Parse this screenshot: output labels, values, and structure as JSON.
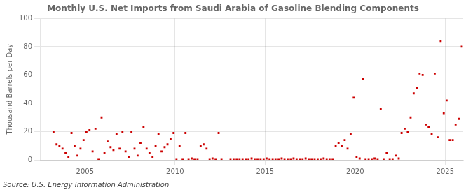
{
  "chart_data": {
    "type": "scatter",
    "title": "Monthly U.S. Net Imports from Saudi Arabia of Gasoline Blending Components",
    "ylabel": "Thousand Barrels per Day",
    "annotation": "Source: U.S. Energy Information Administration",
    "color": "#cc0000",
    "marker": "square",
    "grid": true,
    "xlim": [
      2002.5,
      2026.0
    ],
    "xticks": [
      2005,
      2010,
      2015,
      2020,
      2025
    ],
    "ylim": [
      0,
      100
    ],
    "yticks": [
      0,
      20,
      40,
      60,
      80,
      100
    ],
    "x": [
      2003.25,
      2003.42,
      2003.58,
      2003.75,
      2003.92,
      2004.08,
      2004.25,
      2004.42,
      2004.58,
      2004.75,
      2004.92,
      2005.08,
      2005.25,
      2005.42,
      2005.58,
      2005.75,
      2005.92,
      2006.08,
      2006.25,
      2006.42,
      2006.58,
      2006.75,
      2006.92,
      2007.08,
      2007.25,
      2007.42,
      2007.58,
      2007.75,
      2007.92,
      2008.08,
      2008.25,
      2008.42,
      2008.58,
      2008.75,
      2008.92,
      2009.08,
      2009.25,
      2009.42,
      2009.58,
      2009.75,
      2009.92,
      2010.08,
      2010.25,
      2010.42,
      2010.58,
      2010.75,
      2010.92,
      2011.08,
      2011.25,
      2011.42,
      2011.58,
      2011.75,
      2011.92,
      2012.08,
      2012.25,
      2012.42,
      2012.58,
      2013.08,
      2013.25,
      2013.42,
      2013.58,
      2013.75,
      2013.92,
      2014.08,
      2014.25,
      2014.42,
      2014.58,
      2014.75,
      2014.92,
      2015.08,
      2015.25,
      2015.42,
      2015.58,
      2015.75,
      2015.92,
      2016.08,
      2016.25,
      2016.42,
      2016.58,
      2016.75,
      2016.92,
      2017.08,
      2017.25,
      2017.42,
      2017.58,
      2017.75,
      2017.92,
      2018.08,
      2018.25,
      2018.42,
      2018.58,
      2018.75,
      2018.92,
      2019.08,
      2019.25,
      2019.42,
      2019.58,
      2019.75,
      2019.92,
      2020.08,
      2020.25,
      2020.42,
      2020.58,
      2020.75,
      2020.92,
      2021.08,
      2021.25,
      2021.42,
      2021.58,
      2021.75,
      2021.92,
      2022.08,
      2022.25,
      2022.42,
      2022.58,
      2022.75,
      2022.92,
      2023.08,
      2023.25,
      2023.42,
      2023.58,
      2023.75,
      2023.92,
      2024.08,
      2024.25,
      2024.42,
      2024.58,
      2024.75,
      2024.92,
      2025.08,
      2025.25,
      2025.42,
      2025.58,
      2025.75,
      2025.92
    ],
    "values": [
      20,
      11,
      10,
      8,
      5,
      2,
      19,
      10,
      3,
      8,
      14,
      20,
      21,
      6,
      22,
      0,
      30,
      5,
      13,
      9,
      7,
      18,
      8,
      20,
      6,
      2,
      20,
      8,
      3,
      12,
      23,
      8,
      5,
      2,
      10,
      18,
      6,
      9,
      11,
      15,
      19,
      0,
      10,
      0,
      19,
      0,
      1,
      0,
      0,
      10,
      11,
      8,
      0,
      1,
      0,
      19,
      0,
      0,
      0,
      0,
      0,
      0,
      0,
      0,
      1,
      0,
      0,
      0,
      0,
      1,
      0,
      0,
      0,
      0,
      1,
      0,
      0,
      0,
      1,
      0,
      0,
      0,
      1,
      0,
      0,
      0,
      0,
      0,
      1,
      0,
      0,
      0,
      10,
      12,
      10,
      14,
      8,
      18,
      44,
      2,
      1,
      57,
      0,
      0,
      0,
      1,
      0,
      36,
      0,
      5,
      0,
      0,
      3,
      1,
      19,
      22,
      20,
      30,
      47,
      51,
      61,
      60,
      25,
      23,
      18,
      61,
      16,
      84,
      33,
      42,
      14,
      14,
      25,
      29,
      80
    ]
  }
}
